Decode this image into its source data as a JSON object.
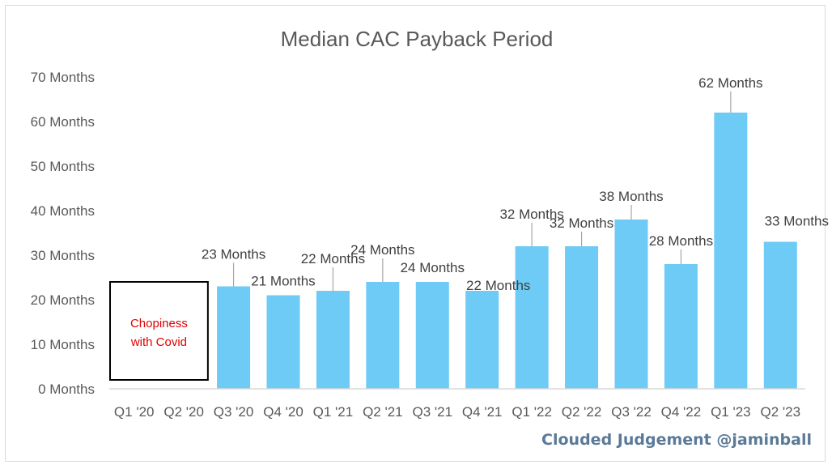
{
  "chart_data": {
    "type": "bar",
    "title": "Median CAC Payback Period",
    "xlabel": "",
    "ylabel": "",
    "ylim": [
      0,
      70
    ],
    "y_ticks": [
      "0 Months",
      "10 Months",
      "20 Months",
      "30 Months",
      "40 Months",
      "50 Months",
      "60 Months",
      "70 Months"
    ],
    "categories": [
      "Q1 '20",
      "Q2 '20",
      "Q3 '20",
      "Q4 '20",
      "Q1 '21",
      "Q2 '21",
      "Q3 '21",
      "Q4 '21",
      "Q1 '22",
      "Q2 '22",
      "Q3 '22",
      "Q4 '22",
      "Q1 '23",
      "Q2 '23"
    ],
    "values": [
      null,
      null,
      23,
      21,
      22,
      24,
      24,
      22,
      32,
      32,
      38,
      28,
      62,
      33
    ],
    "data_labels": [
      "",
      "",
      "23 Months",
      "21 Months",
      "22 Months",
      "24 Months",
      "24 Months",
      "22 Months",
      "32 Months",
      "32 Months",
      "38 Months",
      "28 Months",
      "62 Months",
      "33 Months"
    ],
    "bar_color": "#6dcbf5",
    "grid": false,
    "annotation": {
      "text_lines": [
        "Chopiness",
        "with Covid"
      ],
      "color": "#e00000"
    }
  },
  "credit": "Clouded Judgement @jaminball"
}
